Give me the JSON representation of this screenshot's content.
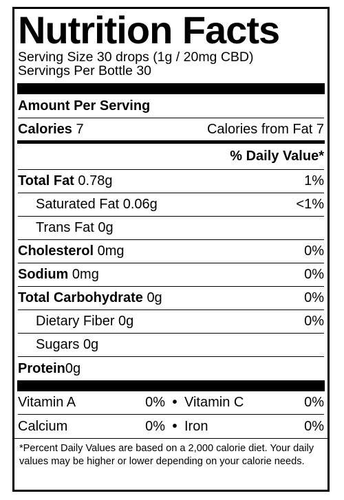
{
  "title": "Nutrition Facts",
  "serving_size": "Serving Size 30 drops (1g / 20mg CBD)",
  "servings_per": "Servings Per Bottle 30",
  "amount_per_serving": "Amount Per Serving",
  "calories": {
    "label": "Calories",
    "value": "7",
    "from_fat": "Calories from Fat 7"
  },
  "daily_value_header": "% Daily Value*",
  "nutrients": [
    {
      "label": "Total Fat",
      "value": "0.78g",
      "dv": "1%"
    },
    {
      "label": "Saturated Fat",
      "value": "0.06g",
      "dv": "<1%"
    },
    {
      "label": "Trans Fat",
      "value": "0g",
      "dv": ""
    },
    {
      "label": "Cholesterol",
      "value": "0mg",
      "dv": "0%"
    },
    {
      "label": "Sodium",
      "value": "0mg",
      "dv": "0%"
    },
    {
      "label": "Total Carbohydrate",
      "value": "0g",
      "dv": "0%"
    },
    {
      "label": "Dietary Fiber",
      "value": "0g",
      "dv": "0%"
    },
    {
      "label": "Sugars",
      "value": "0g",
      "dv": ""
    },
    {
      "label": "Protein",
      "value": "0g",
      "dv": ""
    }
  ],
  "vitamins": [
    {
      "left_label": "Vitamin A",
      "left_dv": "0%",
      "bullet": "•",
      "right_label": "Vitamin C",
      "right_dv": "0%"
    },
    {
      "left_label": "Calcium",
      "left_dv": "0%",
      "bullet": "•",
      "right_label": "Iron",
      "right_dv": "0%"
    }
  ],
  "footnote": "*Percent Daily Values are based on a 2,000 calorie diet. Your daily values may be higher or lower depending on your calorie needs."
}
